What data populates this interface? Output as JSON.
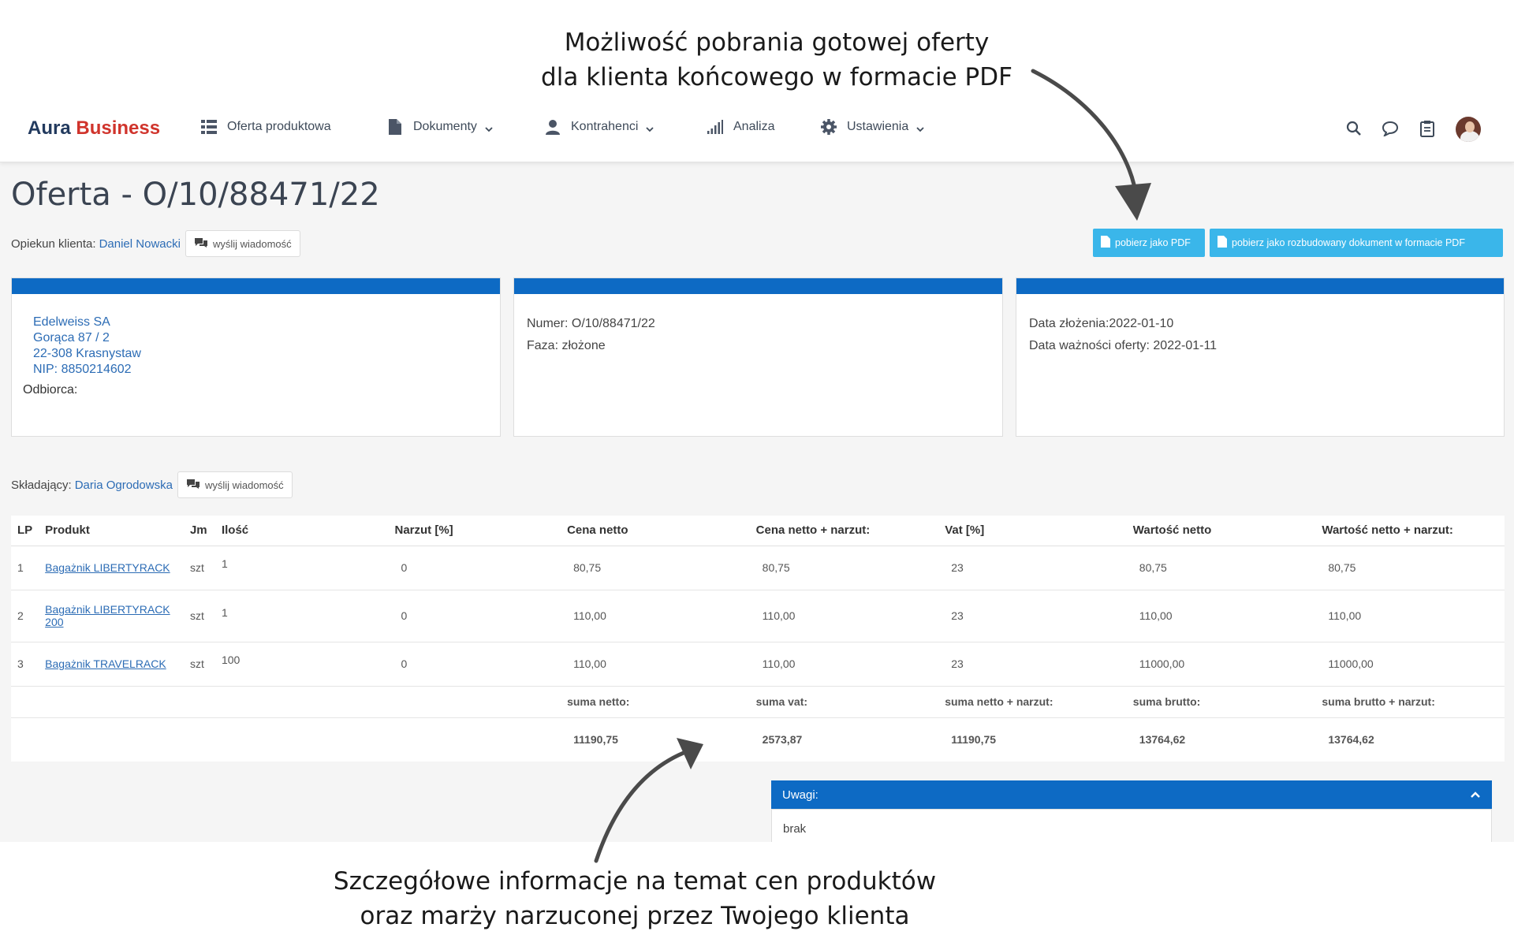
{
  "annotations": {
    "top_line1": "Możliwość pobrania gotowej oferty",
    "top_line2": "dla klienta końcowego w formacie PDF",
    "bottom_line1": "Szczegółowe informacje na temat cen produktów",
    "bottom_line2": "oraz marży narzuconej przez Twojego klienta"
  },
  "brand": {
    "part1": "Aura",
    "part2": "Business",
    "color1": "#223a5e",
    "color2": "#d0342c"
  },
  "nav": {
    "items": [
      {
        "label": "Oferta produktowa",
        "icon": "grid-list-icon",
        "dropdown": false
      },
      {
        "label": "Dokumenty",
        "icon": "document-icon",
        "dropdown": true
      },
      {
        "label": "Kontrahenci",
        "icon": "user-icon",
        "dropdown": true
      },
      {
        "label": "Analiza",
        "icon": "signal-bars-icon",
        "dropdown": false
      },
      {
        "label": "Ustawienia",
        "icon": "gear-icon",
        "dropdown": true
      }
    ],
    "right_icons": [
      "search-icon",
      "chat-icon",
      "clipboard-icon",
      "avatar"
    ]
  },
  "page": {
    "title": "Oferta - O/10/88471/22",
    "opiekun_label": "Opiekun klienta:",
    "opiekun_name": "Daniel Nowacki",
    "send_message": "wyślij wiadomość",
    "skladajacy_label": "Składający:",
    "skladajacy_name": "Daria Ogrodowska",
    "pdf_button": "pobierz jako PDF",
    "pdf_extended_button": "pobierz jako rozbudowany dokument w formacie PDF"
  },
  "cards": {
    "client": {
      "name": "Edelweiss SA",
      "street": "Gorąca 87 / 2",
      "city": "22-308 Krasnystaw",
      "nip": "NIP: 8850214602",
      "odbiorca": "Odbiorca:"
    },
    "offer": {
      "numer": "Numer: O/10/88471/22",
      "faza": "Faza: złożone"
    },
    "dates": {
      "zlozenie": "Data złożenia:2022-01-10",
      "waznosc": "Data ważności oferty: 2022-01-11"
    }
  },
  "table": {
    "headers": [
      "LP",
      "Produkt",
      "Jm",
      "Ilość",
      "Narzut [%]",
      "Cena netto",
      "Cena netto + narzut:",
      "Vat [%]",
      "Wartość netto",
      "Wartość netto + narzut:"
    ],
    "rows": [
      {
        "lp": "1",
        "produkt": "Bagażnik LIBERTYRACK",
        "jm": "szt",
        "ilosc": "1",
        "narzut": "0",
        "cena_netto": "80,75",
        "cena_narzut": "80,75",
        "vat": "23",
        "wartosc_netto": "80,75",
        "wartosc_narzut": "80,75"
      },
      {
        "lp": "2",
        "produkt": "Bagażnik LIBERTYRACK 200",
        "jm": "szt",
        "ilosc": "1",
        "narzut": "0",
        "cena_netto": "110,00",
        "cena_narzut": "110,00",
        "vat": "23",
        "wartosc_netto": "110,00",
        "wartosc_narzut": "110,00"
      },
      {
        "lp": "3",
        "produkt": "Bagażnik TRAVELRACK",
        "jm": "szt",
        "ilosc": "100",
        "narzut": "0",
        "cena_netto": "110,00",
        "cena_narzut": "110,00",
        "vat": "23",
        "wartosc_netto": "11000,00",
        "wartosc_narzut": "11000,00"
      }
    ],
    "summary_labels": [
      "suma netto:",
      "suma vat:",
      "suma netto + narzut:",
      "suma brutto:",
      "suma brutto + narzut:"
    ],
    "summary_values": [
      "11190,75",
      "2573,87",
      "11190,75",
      "13764,62",
      "13764,62"
    ]
  },
  "uwagi": {
    "title": "Uwagi:",
    "content": "brak"
  },
  "colors": {
    "primary_bar": "#0d6ac4",
    "pdf_button": "#3ab6ea",
    "link": "#2c6cb5"
  }
}
